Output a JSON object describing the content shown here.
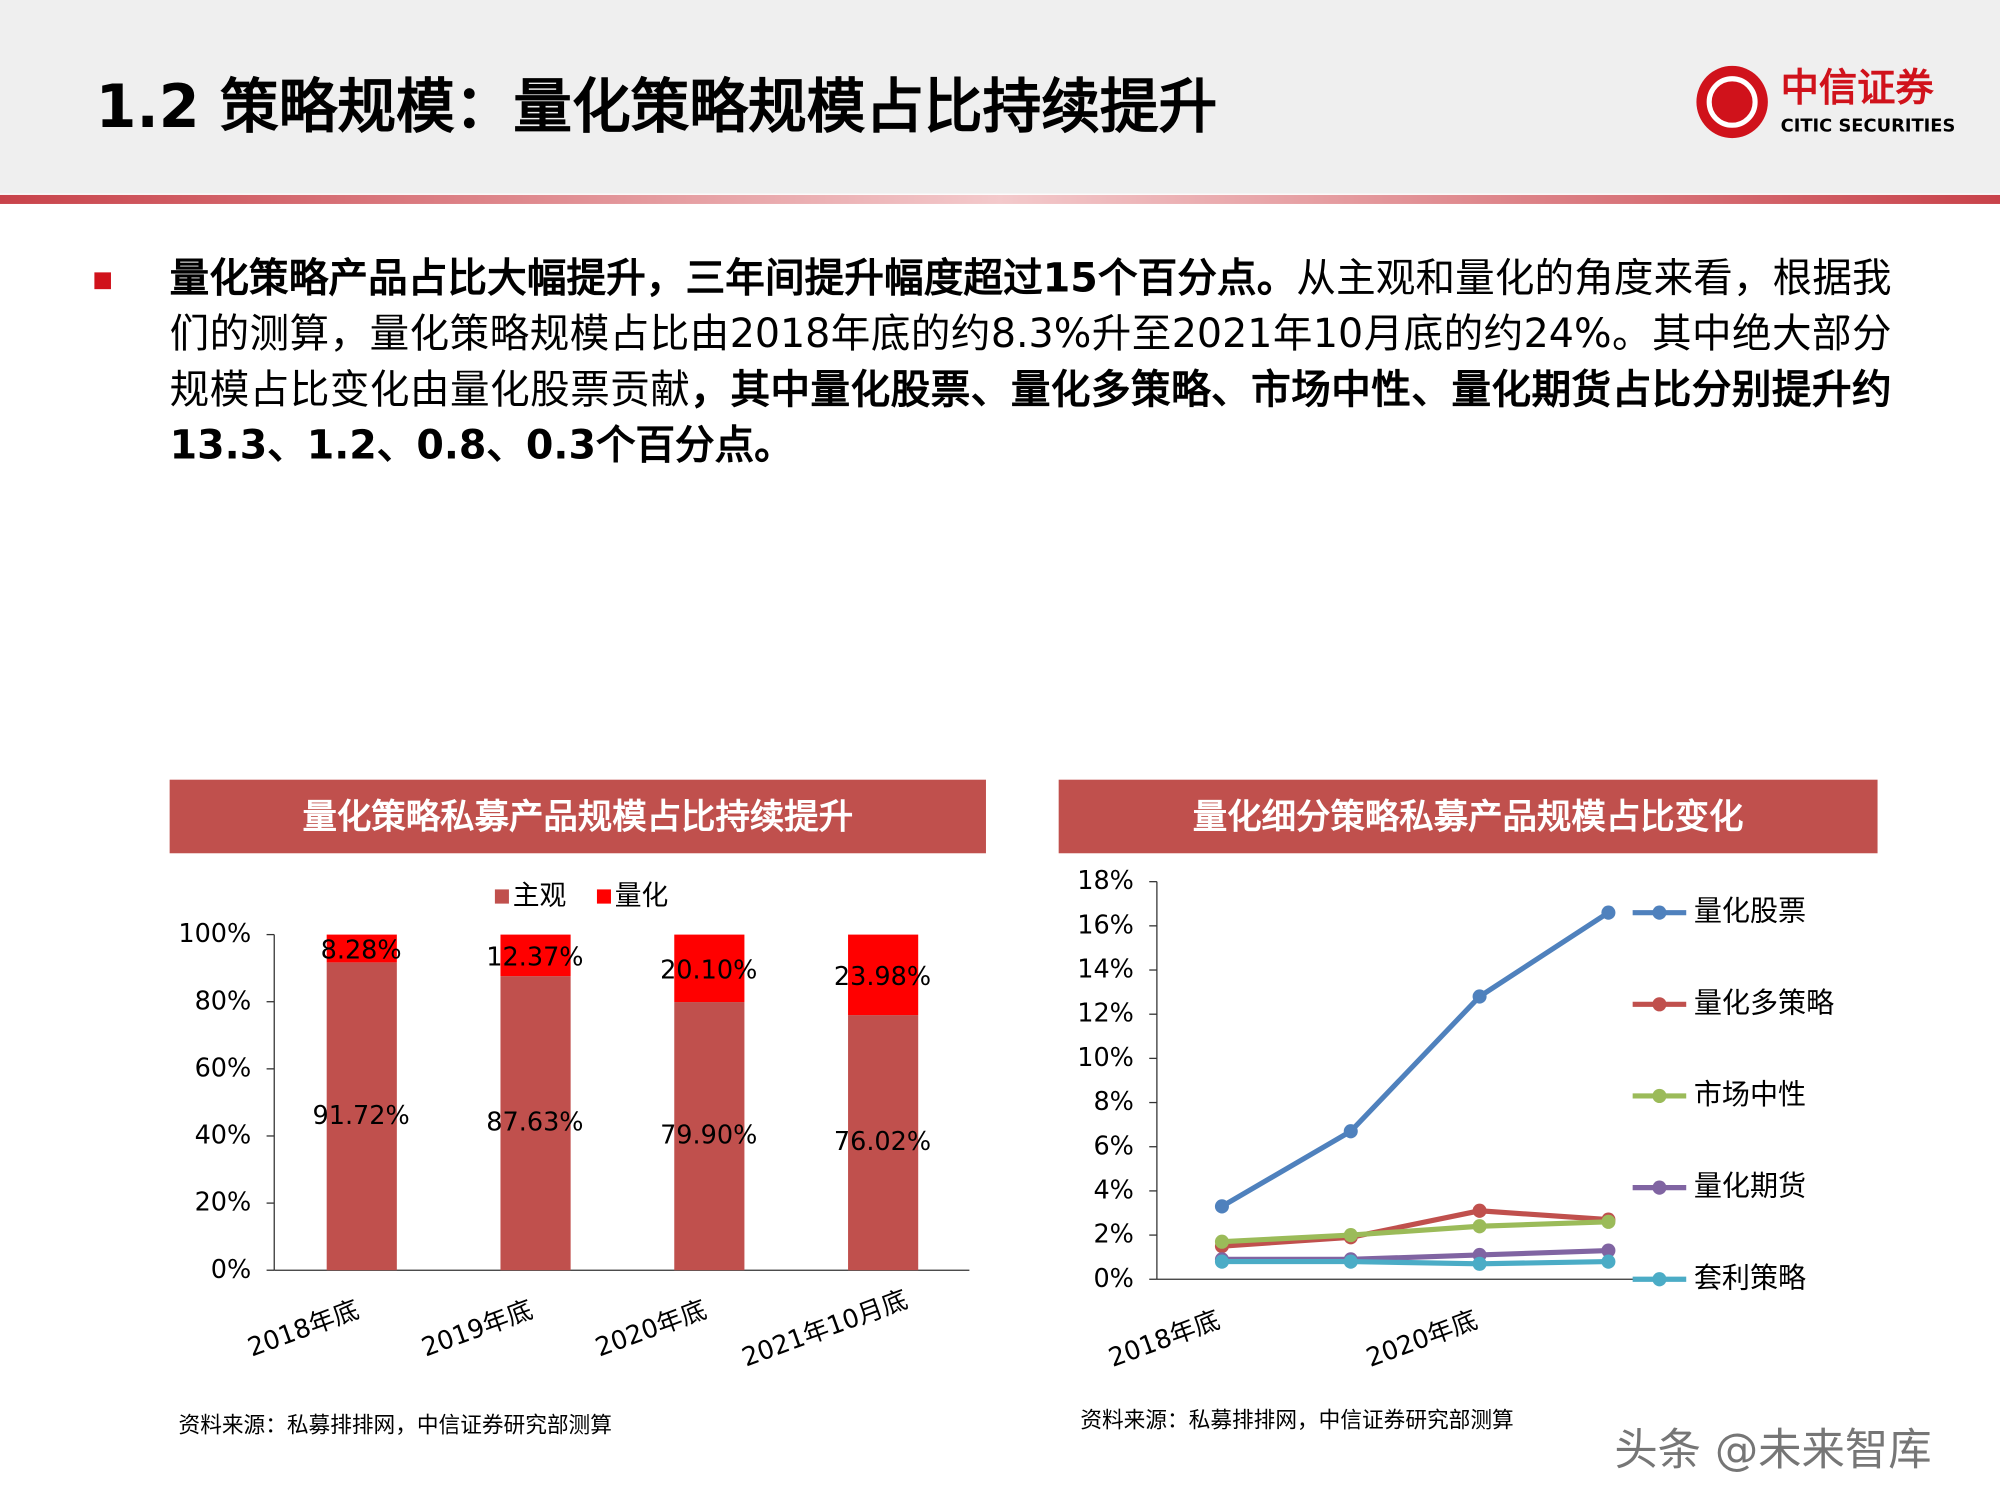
{
  "header": {
    "title": "1.2 策略规模：量化策略规模占比持续提升",
    "logo_cn": "中信证券",
    "logo_en": "CITIC SECURITIES"
  },
  "body": {
    "runs": [
      {
        "text": "量化策略产品占比大幅提升，三年间提升幅度超过15个百分点。",
        "bold": true
      },
      {
        "text": "从主观和量化的角度来看，根据我们的测算，量化策略规模占比由2018年底的约8.3%升至2021年10月底的约24%。其中绝大部分规模占比变化由量化股票贡献",
        "bold": false
      },
      {
        "text": "，其中量化股票、量化多策略、市场中性、量化期货占比分别提升约13.3、1.2、0.8、0.3个百分点。",
        "bold": true
      }
    ]
  },
  "chart_data": [
    {
      "type": "stacked_bar",
      "title": "量化策略私募产品规模占比持续提升",
      "categories": [
        "2018年底",
        "2019年底",
        "2020年底",
        "2021年10月底"
      ],
      "series": [
        {
          "name": "主观",
          "color": "#c0504d",
          "values": [
            91.72,
            87.63,
            79.9,
            76.02
          ],
          "value_labels": [
            "91.72%",
            "87.63%",
            "79.90%",
            "76.02%"
          ]
        },
        {
          "name": "量化",
          "color": "#ff0000",
          "values": [
            8.28,
            12.37,
            20.1,
            23.98
          ],
          "value_labels": [
            "8.28%",
            "12.37%",
            "20.10%",
            "23.98%"
          ]
        }
      ],
      "ylim": [
        0,
        100
      ],
      "yticks": [
        {
          "value": 0,
          "label": "0%"
        },
        {
          "value": 20,
          "label": "20%"
        },
        {
          "value": 40,
          "label": "40%"
        },
        {
          "value": 60,
          "label": "60%"
        },
        {
          "value": 80,
          "label": "80%"
        },
        {
          "value": 100,
          "label": "100%"
        }
      ],
      "legend": "top",
      "source": "资料来源：私募排排网，中信证券研究部测算"
    },
    {
      "type": "line",
      "title": "量化细分策略私募产品规模占比变化",
      "categories": [
        "2018年底",
        null,
        "2020年底",
        null
      ],
      "series": [
        {
          "name": "量化股票",
          "color": "#4f81bd",
          "values": [
            3.3,
            6.7,
            12.8,
            16.6
          ]
        },
        {
          "name": "量化多策略",
          "color": "#c0504d",
          "values": [
            1.5,
            1.9,
            3.1,
            2.7
          ]
        },
        {
          "name": "市场中性",
          "color": "#9bbb59",
          "values": [
            1.7,
            2.0,
            2.4,
            2.6
          ]
        },
        {
          "name": "量化期货",
          "color": "#8064a2",
          "values": [
            0.9,
            0.9,
            1.1,
            1.3
          ]
        },
        {
          "name": "套利策略",
          "color": "#4bacc6",
          "values": [
            0.8,
            0.8,
            0.7,
            0.8
          ]
        }
      ],
      "ylim": [
        0,
        18
      ],
      "yticks": [
        {
          "value": 0,
          "label": "0%"
        },
        {
          "value": 2,
          "label": "2%"
        },
        {
          "value": 4,
          "label": "4%"
        },
        {
          "value": 6,
          "label": "6%"
        },
        {
          "value": 8,
          "label": "8%"
        },
        {
          "value": 10,
          "label": "10%"
        },
        {
          "value": 12,
          "label": "12%"
        },
        {
          "value": 14,
          "label": "14%"
        },
        {
          "value": 16,
          "label": "16%"
        },
        {
          "value": 18,
          "label": "18%"
        }
      ],
      "legend": "right",
      "source": "资料来源：私募排排网，中信证券研究部测算"
    }
  ],
  "watermark": "头条 @未来智库"
}
